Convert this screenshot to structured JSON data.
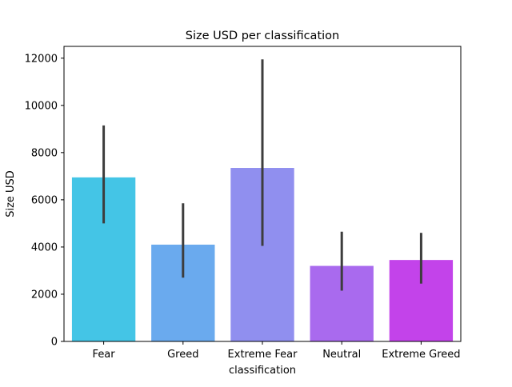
{
  "chart_data": {
    "type": "bar",
    "title": "Size USD per classification",
    "xlabel": "classification",
    "ylabel": "Size USD",
    "categories": [
      "Fear",
      "Greed",
      "Extreme Fear",
      "Neutral",
      "Extreme Greed"
    ],
    "values": [
      6950,
      4100,
      7350,
      3200,
      3450
    ],
    "error_bars": [
      {
        "low": 5000,
        "high": 9150
      },
      {
        "low": 2700,
        "high": 5850
      },
      {
        "low": 4050,
        "high": 11950
      },
      {
        "low": 2150,
        "high": 4650
      },
      {
        "low": 2450,
        "high": 4600
      }
    ],
    "colors": [
      "#44c5e6",
      "#6aaaee",
      "#908fef",
      "#a96aee",
      "#c343ea"
    ],
    "error_color": "#3d3d3d",
    "ylim": [
      0,
      12500
    ],
    "yticks": [
      0,
      2000,
      4000,
      6000,
      8000,
      10000,
      12000
    ],
    "grid": false,
    "legend": "none"
  }
}
